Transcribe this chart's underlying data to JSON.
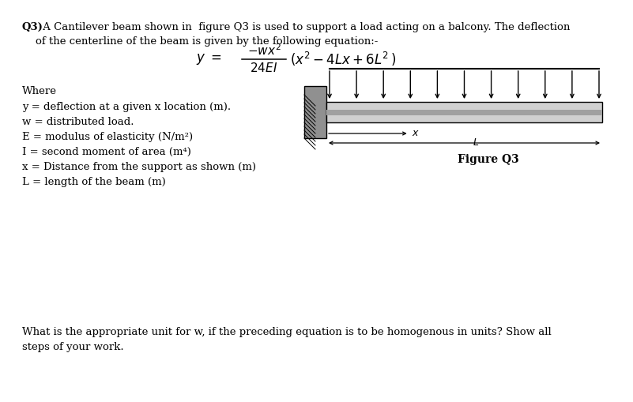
{
  "background_color": "#ffffff",
  "beam_color": "#d0d0d0",
  "beam_stripe_color": "#a0a0a0",
  "wall_color": "#909090",
  "arrow_color": "#000000",
  "texts": {
    "q3_bold": "Q3)",
    "q3_rest": " A Cantilever beam shown in  figure Q3 is used to support a load acting on a balcony. The deflection",
    "line2": "    of the centerline of the beam is given by the following equation:-",
    "where": "Where",
    "def1": "y = deflection at a given x location (m).",
    "def2": "w = distributed load.",
    "def3": "E = modulus of elasticity (N/m²)",
    "def4": "I = second moment of area (m⁴)",
    "def5": "x = Distance from the support as shown (m)",
    "def6": "L = length of the beam (m)",
    "figure_label": "Figure Q3",
    "q_line1": "What is the appropriate unit for w, if the preceding equation is to be homogenous in units? Show all",
    "q_line2": "steps of your work."
  }
}
